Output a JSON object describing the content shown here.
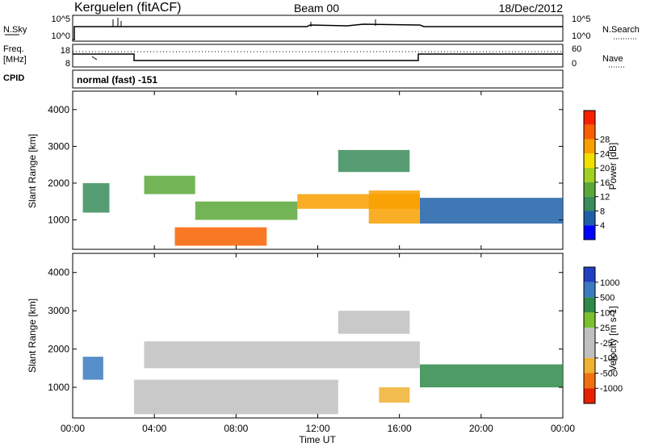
{
  "header": {
    "station": "Kerguelen (fitACF)",
    "beam": "Beam 00",
    "date": "18/Dec/2012"
  },
  "nsky_panel": {
    "left_label": "N.Sky",
    "left_ticks": [
      "10^5",
      "10^0"
    ],
    "right_label": "N.Search",
    "right_ticks": [
      "10^5",
      "10^0"
    ]
  },
  "freq_panel": {
    "left_label_line1": "Freq.",
    "left_label_line2": "[MHz]",
    "left_ticks": [
      "18",
      "8"
    ],
    "right_label": "Nave",
    "right_ticks": [
      "60",
      "0"
    ]
  },
  "cpid_panel": {
    "label": "CPID",
    "value": "normal (fast) -151"
  },
  "colors": {
    "power": [
      "#0000ff",
      "#1f5fa8",
      "#3a8c5a",
      "#5aa838",
      "#a0d020",
      "#f0e000",
      "#f8a000",
      "#f86000",
      "#f82000"
    ],
    "velocity": [
      "#2040c0",
      "#3a7ac0",
      "#2f8a4a",
      "#7ac030",
      "#c0c0c0",
      "#c0c0c0",
      "#f0b030",
      "#f07010",
      "#e82000"
    ]
  },
  "chart_data": [
    {
      "type": "heatmap",
      "quantity": "power",
      "ylabel": "Slant Range [km]",
      "xlabel": "",
      "ylim": [
        200,
        4500
      ],
      "xlim": [
        "00:00",
        "24:00"
      ],
      "y_ticks": [
        "1000",
        "2000",
        "3000",
        "4000"
      ],
      "x_ticks": [
        "00:00",
        "04:00",
        "08:00",
        "12:00",
        "16:00",
        "20:00",
        "00:00"
      ],
      "colorbar": {
        "label": "Power [dB]",
        "ticks": [
          "4",
          "8",
          "12",
          "16",
          "20",
          "24",
          "28"
        ]
      },
      "echo_regions": [
        {
          "t_start": 0.5,
          "t_end": 1.8,
          "r_min": 1200,
          "r_max": 2000,
          "power_db": 8
        },
        {
          "t_start": 3.5,
          "t_end": 6.0,
          "r_min": 1700,
          "r_max": 2200,
          "power_db": 14
        },
        {
          "t_start": 5.0,
          "t_end": 9.5,
          "r_min": 300,
          "r_max": 800,
          "power_db": 26
        },
        {
          "t_start": 6.0,
          "t_end": 11.0,
          "r_min": 1000,
          "r_max": 1500,
          "power_db": 14
        },
        {
          "t_start": 11.0,
          "t_end": 17.0,
          "r_min": 1300,
          "r_max": 1700,
          "power_db": 22
        },
        {
          "t_start": 13.0,
          "t_end": 16.5,
          "r_min": 2300,
          "r_max": 2900,
          "power_db": 10
        },
        {
          "t_start": 14.5,
          "t_end": 17.0,
          "r_min": 900,
          "r_max": 1800,
          "power_db": 24
        },
        {
          "t_start": 17.0,
          "t_end": 24.0,
          "r_min": 900,
          "r_max": 1600,
          "power_db": 6
        }
      ]
    },
    {
      "type": "heatmap",
      "quantity": "velocity",
      "ylabel": "Slant Range [km]",
      "xlabel": "Time UT",
      "ylim": [
        200,
        4500
      ],
      "xlim": [
        "00:00",
        "24:00"
      ],
      "y_ticks": [
        "1000",
        "2000",
        "3000",
        "4000"
      ],
      "x_ticks": [
        "00:00",
        "04:00",
        "08:00",
        "12:00",
        "16:00",
        "20:00",
        "00:00"
      ],
      "colorbar": {
        "label": "Velocity [m s-1]",
        "ticks": [
          "1000",
          "500",
          "100",
          "25",
          "-25",
          "-100",
          "-500",
          "-1000"
        ]
      },
      "echo_regions": [
        {
          "t_start": 3.5,
          "t_end": 17.0,
          "r_min": 1500,
          "r_max": 2200,
          "velocity_ms": 0
        },
        {
          "t_start": 3.0,
          "t_end": 13.0,
          "r_min": 300,
          "r_max": 1200,
          "velocity_ms": 0
        },
        {
          "t_start": 15.0,
          "t_end": 16.5,
          "r_min": 600,
          "r_max": 1000,
          "velocity_ms": -500
        },
        {
          "t_start": 13.0,
          "t_end": 16.5,
          "r_min": 2400,
          "r_max": 3000,
          "velocity_ms": -100
        },
        {
          "t_start": 0.5,
          "t_end": 1.5,
          "r_min": 1200,
          "r_max": 1800,
          "velocity_ms": 500
        },
        {
          "t_start": 17.0,
          "t_end": 24.0,
          "r_min": 1000,
          "r_max": 1600,
          "velocity_ms": 100
        }
      ]
    }
  ]
}
